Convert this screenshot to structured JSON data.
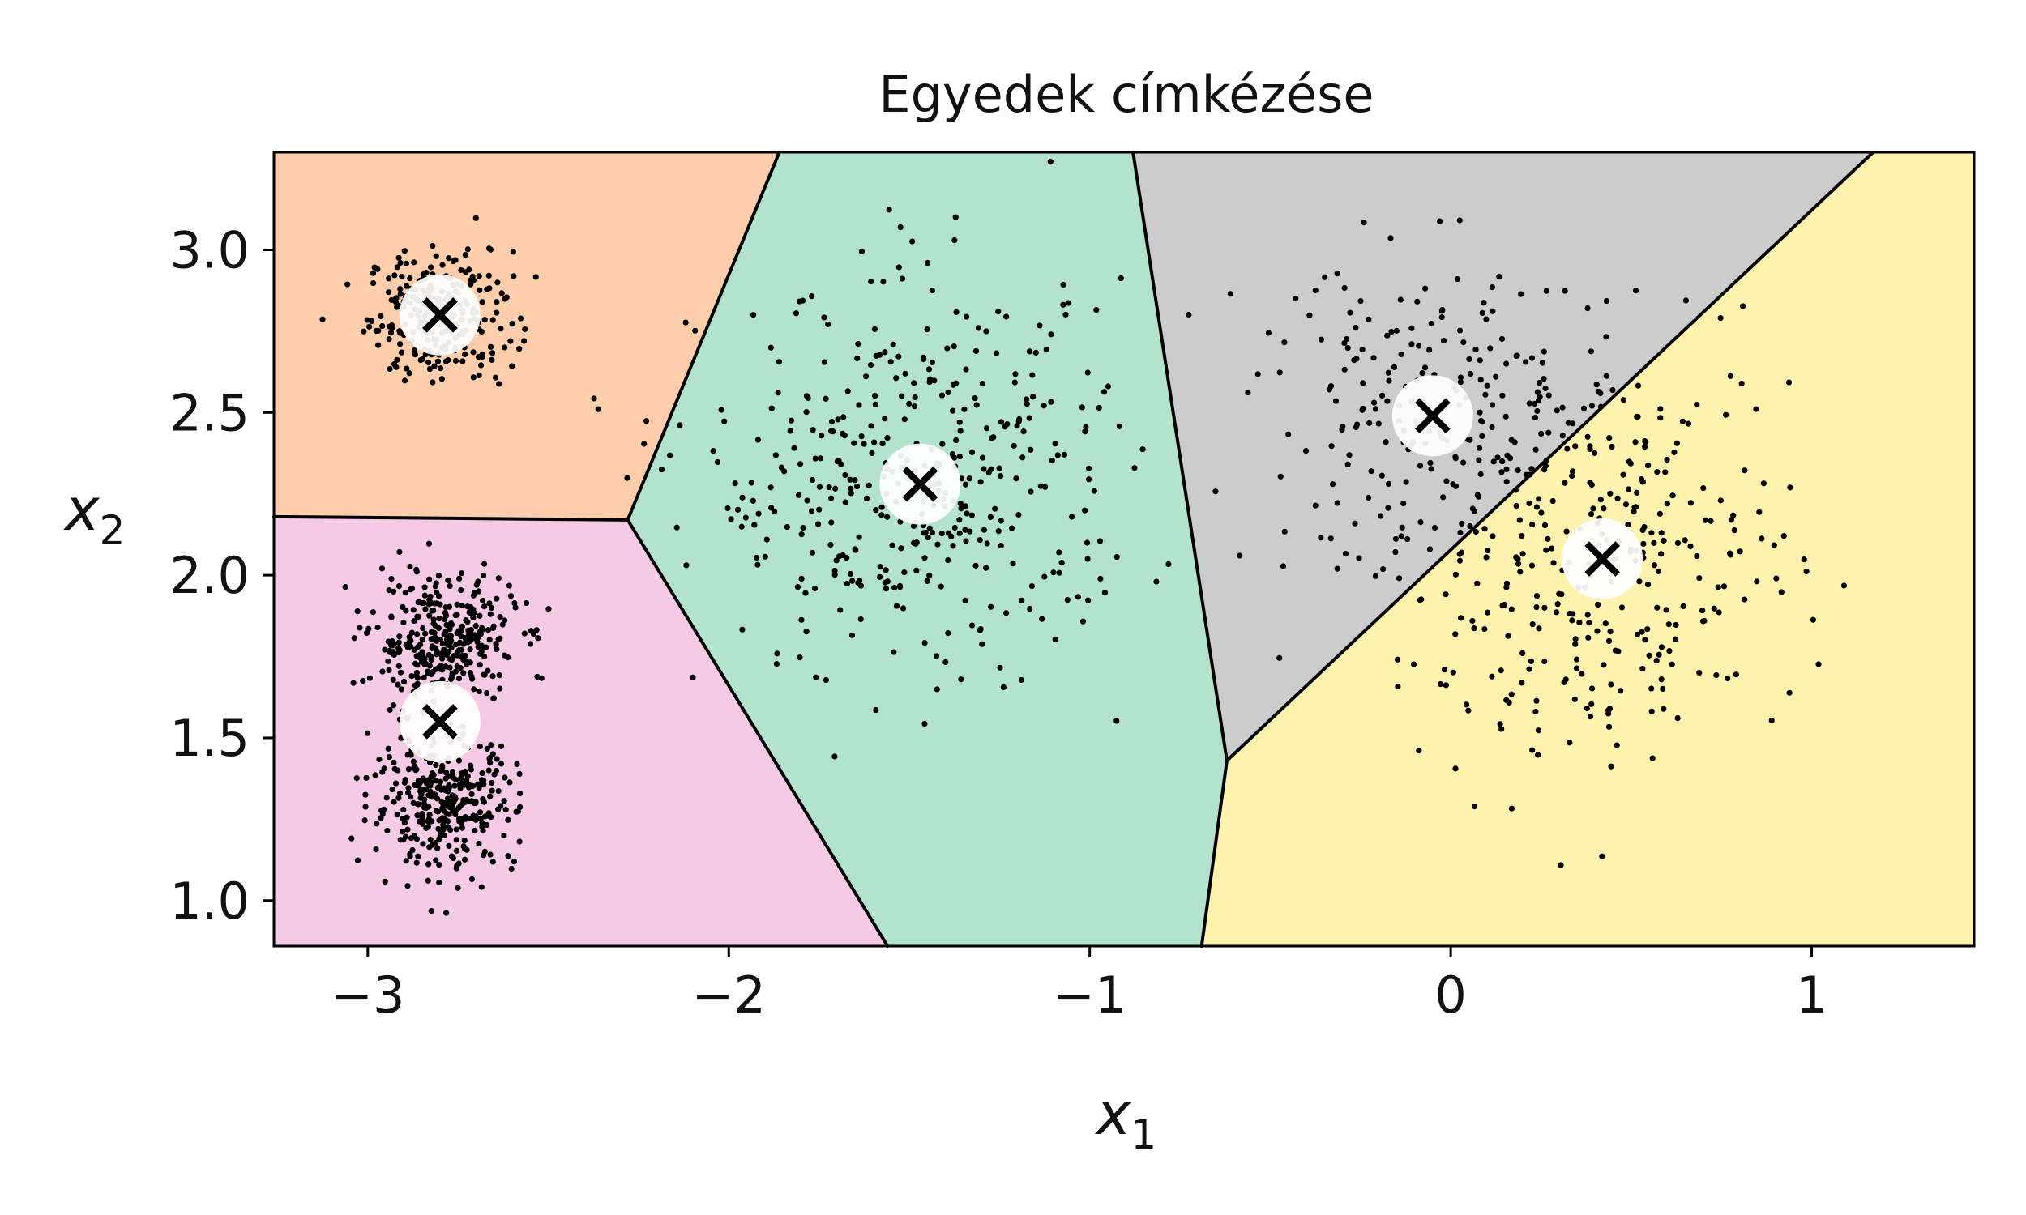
{
  "chart_data": {
    "type": "scatter",
    "title": "Egyedek címkézése",
    "xlabel": "x",
    "xlabel_sub": "1",
    "ylabel": "x",
    "ylabel_sub": "2",
    "xlim": [
      -3.26,
      1.45
    ],
    "ylim": [
      0.86,
      3.3
    ],
    "xticks": [
      -3,
      -2,
      -1,
      0,
      1
    ],
    "xtick_labels": [
      "−3",
      "−2",
      "−1",
      "0",
      "1"
    ],
    "yticks": [
      1.0,
      1.5,
      2.0,
      2.5,
      3.0
    ],
    "ytick_labels": [
      "1.0",
      "1.5",
      "2.0",
      "2.5",
      "3.0"
    ],
    "grid": false,
    "regions": [
      {
        "color": "#fdcdac",
        "polygon": [
          [
            -3.26,
            3.3
          ],
          [
            -1.86,
            3.3
          ],
          [
            -2.28,
            2.17
          ],
          [
            -3.26,
            2.18
          ]
        ]
      },
      {
        "color": "#f4cae4",
        "polygon": [
          [
            -3.26,
            2.18
          ],
          [
            -2.28,
            2.17
          ],
          [
            -1.56,
            0.86
          ],
          [
            -3.26,
            0.86
          ]
        ]
      },
      {
        "color": "#b3e2cd",
        "polygon": [
          [
            -1.86,
            3.3
          ],
          [
            -0.88,
            3.3
          ],
          [
            -0.62,
            1.43
          ],
          [
            -0.69,
            0.86
          ],
          [
            -1.56,
            0.86
          ],
          [
            -2.28,
            2.17
          ]
        ]
      },
      {
        "color": "#cccccc",
        "polygon": [
          [
            -0.88,
            3.3
          ],
          [
            1.17,
            3.3
          ],
          [
            -0.62,
            1.43
          ]
        ]
      },
      {
        "color": "#fff2ae",
        "polygon": [
          [
            1.17,
            3.3
          ],
          [
            1.45,
            3.3
          ],
          [
            1.45,
            0.86
          ],
          [
            -0.69,
            0.86
          ],
          [
            -0.62,
            1.43
          ]
        ]
      }
    ],
    "boundary_color": "#000000",
    "blobs": [
      {
        "name": "blob-1",
        "cx": -2.8,
        "cy": 2.8,
        "sx": 0.1,
        "sy": 0.1,
        "n": 260
      },
      {
        "name": "blob-2",
        "cx": -2.79,
        "cy": 1.8,
        "sx": 0.1,
        "sy": 0.1,
        "n": 340
      },
      {
        "name": "blob-3",
        "cx": -2.79,
        "cy": 1.3,
        "sx": 0.1,
        "sy": 0.1,
        "n": 340
      },
      {
        "name": "blob-4",
        "cx": -1.47,
        "cy": 2.28,
        "sx": 0.3,
        "sy": 0.3,
        "n": 420
      },
      {
        "name": "blob-5",
        "cx": -0.05,
        "cy": 2.49,
        "sx": 0.25,
        "sy": 0.25,
        "n": 200
      },
      {
        "name": "blob-6",
        "cx": 0.4,
        "cy": 2.05,
        "sx": 0.28,
        "sy": 0.32,
        "n": 330
      }
    ],
    "point_color": "#000000",
    "centroids": [
      {
        "x": -2.8,
        "y": 2.8
      },
      {
        "x": -2.8,
        "y": 1.55
      },
      {
        "x": -1.47,
        "y": 2.28
      },
      {
        "x": -0.05,
        "y": 2.49
      },
      {
        "x": 0.42,
        "y": 2.05
      }
    ],
    "centroid_marker_color": "#000000",
    "centroid_circle_color": "#ffffff"
  }
}
